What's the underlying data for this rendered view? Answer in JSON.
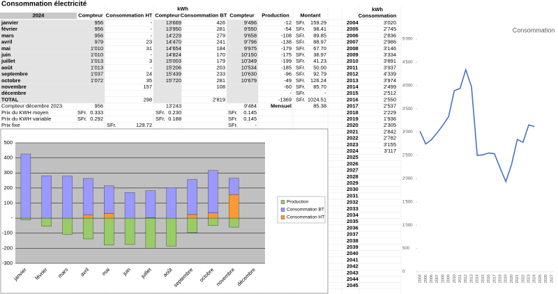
{
  "title": "Consommation électricité",
  "table": {
    "unit": "kWh",
    "headers": [
      "2024",
      "Compteur",
      "Consommation HT",
      "Compteur",
      "Consommation BT",
      "Compteur",
      "Production",
      "Montant"
    ],
    "rows": [
      [
        "janvier",
        null,
        "956",
        null,
        "-",
        null,
        "13'669",
        "426",
        null,
        "9'496",
        "-12",
        "SFr.",
        "159.29"
      ],
      [
        "février",
        null,
        "956",
        null,
        "-",
        null,
        "13'950",
        "281",
        null,
        "9'550",
        "-54",
        "SFr.",
        "98.41"
      ],
      [
        "mars",
        null,
        "956",
        null,
        "-",
        null,
        "14'229",
        "279",
        null,
        "9'658",
        "-108",
        "SFr.",
        "89.85"
      ],
      [
        "avril",
        null,
        "979",
        null,
        "23",
        null,
        "14'470",
        "241",
        null,
        "9'796",
        "-138",
        "SFr.",
        "88.97"
      ],
      [
        "mai",
        null,
        "1'010",
        null,
        "31",
        null,
        "14'654",
        "184",
        null,
        "9'975",
        "-179",
        "SFr.",
        "67.70"
      ],
      [
        "juin",
        null,
        "1'010",
        null,
        "-",
        null,
        "14'824",
        "170",
        null,
        "10'150",
        "-175",
        "SFr.",
        "38.97"
      ],
      [
        "juillet",
        null,
        "1'013",
        null,
        "3",
        null,
        "15'003",
        "179",
        null,
        "10'349",
        "-199",
        "SFr.",
        "41.23"
      ],
      [
        "août",
        null,
        "1'013",
        null,
        "-",
        null,
        "15'206",
        "203",
        null,
        "10'534",
        "-185",
        "SFr.",
        "50.00"
      ],
      [
        "septembre",
        null,
        "1'037",
        null,
        "24",
        null,
        "15'439",
        "233",
        null,
        "10'630",
        "-96",
        "SFr.",
        "92.79"
      ],
      [
        "octobre",
        null,
        "1'072",
        null,
        "35",
        null,
        "15'720",
        "281",
        null,
        "10'679",
        "-49",
        "SFr.",
        "126.24"
      ],
      [
        "novembre",
        null,
        null,
        null,
        "157",
        null,
        null,
        "108",
        null,
        null,
        "-60",
        "SFr.",
        "85.70"
      ],
      [
        "décembre",
        null,
        null,
        null,
        null,
        null,
        null,
        null,
        null,
        null,
        "-",
        "SFr.",
        "-"
      ],
      [
        "TOTAL",
        null,
        null,
        null,
        "298",
        null,
        null,
        "2'819",
        null,
        null,
        "-1369",
        "SFr.",
        "1024.51"
      ],
      [
        "Compteur décembre 2023",
        null,
        "956",
        null,
        null,
        null,
        "13'243",
        null,
        null,
        "9'484",
        "Mensuel",
        null,
        "85.38"
      ],
      [
        "Prix du KWH moyen",
        "SFr.",
        "0.333",
        null,
        null,
        "SFr.",
        "0.230",
        null,
        "SFr.",
        "0.145",
        null,
        null,
        null
      ],
      [
        "Prix du KWH variable",
        "SFr.",
        "0.292",
        null,
        null,
        "SFr.",
        "0.188",
        null,
        "SFr.",
        "0.145",
        null,
        null,
        null
      ],
      [
        "Prix fixe",
        null,
        null,
        "SFr.",
        "129.72",
        null,
        null,
        null,
        "SFr.",
        "-",
        null,
        null,
        null
      ]
    ]
  },
  "years_table": {
    "unit": "kWh",
    "header": "Consommation",
    "rows": [
      [
        "2004",
        "3'020"
      ],
      [
        "2005",
        "2'745"
      ],
      [
        "2006",
        "2'836"
      ],
      [
        "2007",
        "2'986"
      ],
      [
        "2008",
        "3'146"
      ],
      [
        "2009",
        "3'334"
      ],
      [
        "2010",
        "3'891"
      ],
      [
        "2011",
        "3'937"
      ],
      [
        "2012",
        "4'339"
      ],
      [
        "2013",
        "3'974"
      ],
      [
        "2014",
        "2'499"
      ],
      [
        "2015",
        "2'512"
      ],
      [
        "2016",
        "2'550"
      ],
      [
        "2017",
        "2'537"
      ],
      [
        "2018",
        "2'229"
      ],
      [
        "2019",
        "1'936"
      ],
      [
        "2020",
        "2'305"
      ],
      [
        "2021",
        "2'842"
      ],
      [
        "2022",
        "2'782"
      ],
      [
        "2023",
        "3'155"
      ],
      [
        "2024",
        "3'117"
      ],
      [
        "2025"
      ],
      [
        "2026"
      ],
      [
        "2027"
      ],
      [
        "2028"
      ],
      [
        "2029"
      ],
      [
        "2030"
      ],
      [
        "2031"
      ],
      [
        "2032"
      ],
      [
        "2033"
      ],
      [
        "2034"
      ],
      [
        "2035"
      ],
      [
        "2036"
      ],
      [
        "2037"
      ],
      [
        "2038"
      ],
      [
        "2039"
      ],
      [
        "2040"
      ],
      [
        "2041"
      ],
      [
        "2042"
      ],
      [
        "2043"
      ],
      [
        "2044"
      ],
      [
        "2045"
      ]
    ]
  },
  "chart_data": [
    {
      "type": "bar",
      "stacked": true,
      "plot_color": "#c0c0c0",
      "categories": [
        "janvier",
        "février",
        "mars",
        "avril",
        "mai",
        "juin",
        "juillet",
        "août",
        "septembre",
        "octobre",
        "novembre",
        "décembre"
      ],
      "series": [
        {
          "name": "Production",
          "color": "#99cc66",
          "values": [
            -12,
            -54,
            -108,
            -138,
            -179,
            -175,
            -199,
            -185,
            -96,
            -49,
            -60,
            null
          ]
        },
        {
          "name": "Consommation BT",
          "color": "#9999ff",
          "values": [
            426,
            281,
            279,
            241,
            184,
            170,
            179,
            203,
            233,
            281,
            108,
            null
          ]
        },
        {
          "name": "Consommation HT",
          "color": "#ff9933",
          "values": [
            null,
            null,
            null,
            23,
            31,
            null,
            3,
            null,
            24,
            35,
            157,
            null
          ]
        }
      ],
      "ylim": [
        -300,
        500
      ],
      "yticks": [
        -300,
        -200,
        -100,
        {
          "value": 0,
          "label": "-"
        },
        100,
        200,
        300,
        400,
        500
      ],
      "grid": true,
      "legend": "right"
    },
    {
      "type": "line",
      "title": "Consommation",
      "color": "#4472c4",
      "categories": [
        "2004",
        "2005",
        "2006",
        "2007",
        "2008",
        "2009",
        "2010",
        "2011",
        "2012",
        "2013",
        "2014",
        "2015",
        "2016",
        "2017",
        "2018",
        "2019",
        "2020",
        "2021",
        "2022",
        "2023",
        "2024",
        "2025",
        "2026",
        "2027"
      ],
      "values": [
        3020,
        2745,
        2836,
        2986,
        3146,
        3334,
        3891,
        3937,
        4339,
        3974,
        2499,
        2512,
        2550,
        2537,
        2229,
        1936,
        2305,
        2842,
        2782,
        3155,
        3117,
        null,
        null,
        null
      ],
      "ylim": [
        0,
        5000
      ],
      "yticks": [
        0,
        500,
        {
          "value": 1000,
          "label": "1'000"
        },
        {
          "value": 1500,
          "label": "1'500"
        },
        {
          "value": 2000,
          "label": "2'000"
        },
        {
          "value": 2500,
          "label": "2'500"
        },
        {
          "value": 3000,
          "label": "3'000"
        },
        {
          "value": 3500,
          "label": "3'500"
        },
        {
          "value": 4000,
          "label": "4'000"
        },
        {
          "value": 4500,
          "label": "4'500"
        },
        {
          "value": 5000,
          "label": "5'000"
        }
      ],
      "grid": false
    }
  ]
}
